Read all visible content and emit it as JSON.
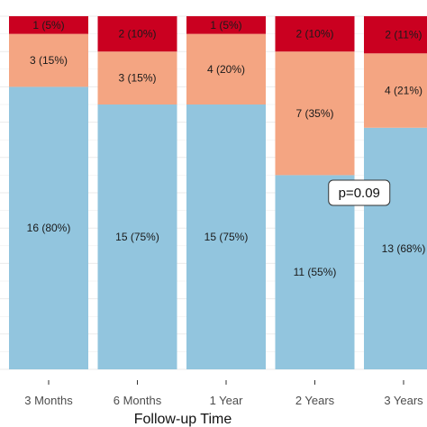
{
  "chart_data": {
    "type": "bar",
    "stacked": true,
    "percent_scale": true,
    "xlabel": "Follow-up Time",
    "categories": [
      "3 Months",
      "6 Months",
      "1 Year",
      "2 Years",
      "3 Years"
    ],
    "series": [
      {
        "color": "#92c5de",
        "values": [
          16,
          15,
          15,
          11,
          13
        ],
        "labels": [
          "16 (80%)",
          "15 (75%)",
          "15 (75%)",
          "11 (55%)",
          "13 (68%)"
        ]
      },
      {
        "color": "#f4a582",
        "values": [
          3,
          3,
          4,
          7,
          4
        ],
        "labels": [
          "3 (15%)",
          "3 (15%)",
          "4 (20%)",
          "7 (35%)",
          "4 (21%)"
        ]
      },
      {
        "color": "#ca0020",
        "values": [
          1,
          2,
          1,
          2,
          2
        ],
        "labels": [
          "1 (5%)",
          "2 (10%)",
          "1 (5%)",
          "2 (10%)",
          "2 (11%)"
        ]
      }
    ],
    "ylim": [
      0,
      100
    ],
    "grid": true,
    "annotations": [
      {
        "text": "p=0.09",
        "between": [
          "2 Years",
          "3 Years"
        ],
        "y_percent": 50
      }
    ]
  }
}
